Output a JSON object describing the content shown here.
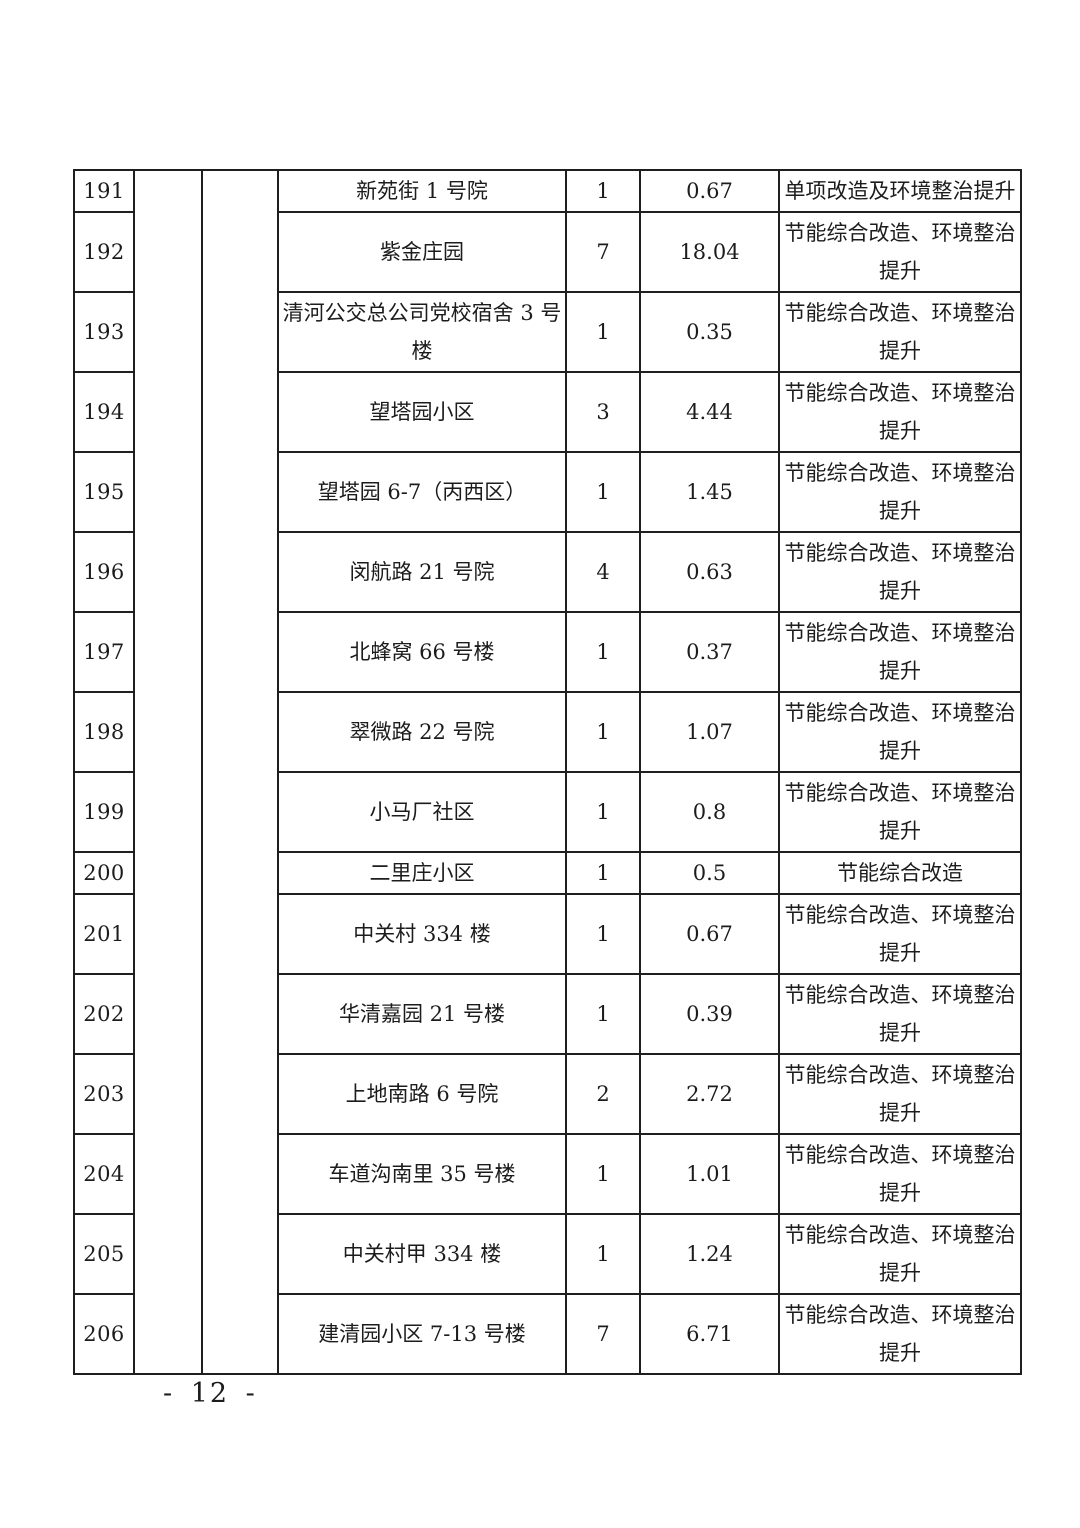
{
  "document": {
    "footer_page_number": "- 12 -"
  },
  "table": {
    "merged_blank_columns": [
      "",
      ""
    ],
    "rows": [
      {
        "no": "191",
        "name": "新苑街 1 号院",
        "buildings": "1",
        "area": "0.67",
        "content": "单项改造及环境整治提升"
      },
      {
        "no": "192",
        "name": "紫金庄园",
        "buildings": "7",
        "area": "18.04",
        "content": "节能综合改造、环境整治提升"
      },
      {
        "no": "193",
        "name": "清河公交总公司党校宿舍 3 号楼",
        "buildings": "1",
        "area": "0.35",
        "content": "节能综合改造、环境整治提升"
      },
      {
        "no": "194",
        "name": "望塔园小区",
        "buildings": "3",
        "area": "4.44",
        "content": "节能综合改造、环境整治提升"
      },
      {
        "no": "195",
        "name": "望塔园 6-7（丙西区）",
        "buildings": "1",
        "area": "1.45",
        "content": "节能综合改造、环境整治提升"
      },
      {
        "no": "196",
        "name": "闵航路 21 号院",
        "buildings": "4",
        "area": "0.63",
        "content": "节能综合改造、环境整治提升"
      },
      {
        "no": "197",
        "name": "北蜂窝 66 号楼",
        "buildings": "1",
        "area": "0.37",
        "content": "节能综合改造、环境整治提升"
      },
      {
        "no": "198",
        "name": "翠微路 22 号院",
        "buildings": "1",
        "area": "1.07",
        "content": "节能综合改造、环境整治提升"
      },
      {
        "no": "199",
        "name": "小马厂社区",
        "buildings": "1",
        "area": "0.8",
        "content": "节能综合改造、环境整治提升"
      },
      {
        "no": "200",
        "name": "二里庄小区",
        "buildings": "1",
        "area": "0.5",
        "content": "节能综合改造"
      },
      {
        "no": "201",
        "name": "中关村 334 楼",
        "buildings": "1",
        "area": "0.67",
        "content": "节能综合改造、环境整治提升"
      },
      {
        "no": "202",
        "name": "华清嘉园 21 号楼",
        "buildings": "1",
        "area": "0.39",
        "content": "节能综合改造、环境整治提升"
      },
      {
        "no": "203",
        "name": "上地南路 6 号院",
        "buildings": "2",
        "area": "2.72",
        "content": "节能综合改造、环境整治提升"
      },
      {
        "no": "204",
        "name": "车道沟南里 35 号楼",
        "buildings": "1",
        "area": "1.01",
        "content": "节能综合改造、环境整治提升"
      },
      {
        "no": "205",
        "name": "中关村甲 334 楼",
        "buildings": "1",
        "area": "1.24",
        "content": "节能综合改造、环境整治提升"
      },
      {
        "no": "206",
        "name": "建清园小区 7-13 号楼",
        "buildings": "7",
        "area": "6.71",
        "content": "节能综合改造、环境整治提升"
      }
    ]
  }
}
